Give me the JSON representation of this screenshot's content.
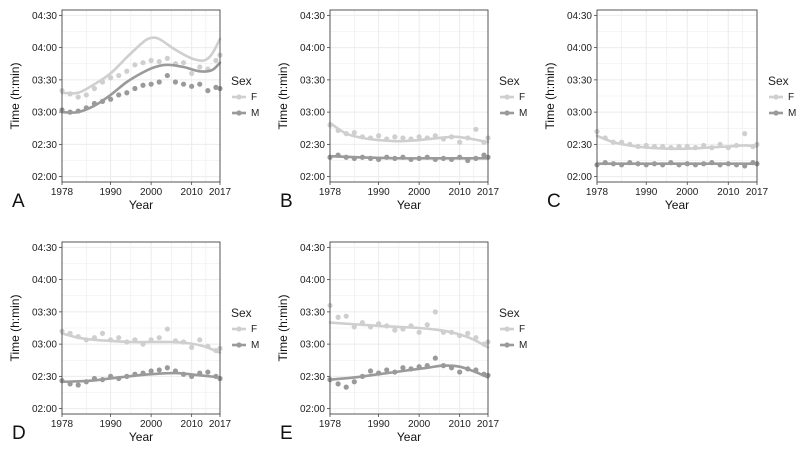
{
  "colors": {
    "F": "#cfcfcf",
    "M": "#9a9a9a",
    "grid": "#ebebeb",
    "frame": "#444444"
  },
  "chart_data": [
    {
      "panel": "A",
      "type": "scatter",
      "xlabel": "Year",
      "ylabel": "Time (h:min)",
      "xlim": [
        1978,
        2017
      ],
      "x_ticks": [
        1978,
        1990,
        2000,
        2010,
        2017
      ],
      "ylim_minutes": [
        115,
        275
      ],
      "y_ticks": [
        "02:00",
        "02:30",
        "03:00",
        "03:30",
        "04:00",
        "04:30"
      ],
      "grid": true,
      "legend": {
        "title": "Sex",
        "entries": [
          "F",
          "M"
        ],
        "position": "right"
      },
      "series": [
        {
          "name": "F",
          "x": [
            1978,
            1980,
            1982,
            1984,
            1986,
            1988,
            1990,
            1992,
            1994,
            1996,
            1998,
            2000,
            2002,
            2004,
            2006,
            2008,
            2010,
            2012,
            2014,
            2016,
            2017
          ],
          "y_minutes": [
            200,
            197,
            194,
            196,
            202,
            208,
            212,
            214,
            218,
            224,
            226,
            228,
            227,
            230,
            225,
            226,
            216,
            222,
            220,
            228,
            233
          ],
          "trend_x": [
            1978,
            1982,
            1986,
            1990,
            1994,
            1998,
            2000,
            2002,
            2006,
            2010,
            2013,
            2015,
            2017
          ],
          "trend_minutes": [
            198,
            198,
            206,
            216,
            231,
            245,
            249,
            248,
            238,
            230,
            228,
            234,
            248
          ]
        },
        {
          "name": "M",
          "x": [
            1978,
            1980,
            1982,
            1984,
            1986,
            1988,
            1990,
            1992,
            1994,
            1996,
            1998,
            2000,
            2002,
            2004,
            2006,
            2008,
            2010,
            2012,
            2014,
            2016,
            2017
          ],
          "y_minutes": [
            182,
            180,
            181,
            184,
            188,
            190,
            192,
            196,
            198,
            202,
            205,
            206,
            208,
            214,
            208,
            206,
            204,
            206,
            200,
            203,
            202
          ],
          "trend_x": [
            1978,
            1982,
            1986,
            1990,
            1994,
            1998,
            2001,
            2004,
            2008,
            2012,
            2015,
            2017
          ],
          "trend_minutes": [
            180,
            180,
            186,
            196,
            208,
            217,
            222,
            224,
            222,
            218,
            219,
            226
          ]
        }
      ]
    },
    {
      "panel": "B",
      "type": "scatter",
      "xlabel": "Year",
      "ylabel": "Time (h:min)",
      "xlim": [
        1978,
        2017
      ],
      "x_ticks": [
        1978,
        1990,
        2000,
        2010,
        2017
      ],
      "ylim_minutes": [
        115,
        275
      ],
      "y_ticks": [
        "02:00",
        "02:30",
        "03:00",
        "03:30",
        "04:00",
        "04:30"
      ],
      "grid": true,
      "legend": {
        "title": "Sex",
        "entries": [
          "F",
          "M"
        ],
        "position": "right"
      },
      "series": [
        {
          "name": "F",
          "x": [
            1978,
            1980,
            1982,
            1984,
            1986,
            1988,
            1990,
            1992,
            1994,
            1996,
            1998,
            2000,
            2002,
            2004,
            2006,
            2008,
            2010,
            2012,
            2014,
            2016,
            2017
          ],
          "y_minutes": [
            168,
            163,
            160,
            161,
            157,
            156,
            158,
            155,
            157,
            156,
            155,
            157,
            156,
            158,
            155,
            157,
            152,
            156,
            164,
            152,
            156
          ],
          "trend_x": [
            1978,
            1982,
            1986,
            1990,
            1995,
            2000,
            2005,
            2009,
            2013,
            2017
          ],
          "trend_minutes": [
            170,
            160,
            156,
            154,
            153,
            154,
            156,
            157,
            155,
            152
          ]
        },
        {
          "name": "M",
          "x": [
            1978,
            1980,
            1982,
            1984,
            1986,
            1988,
            1990,
            1992,
            1994,
            1996,
            1998,
            2000,
            2002,
            2004,
            2006,
            2008,
            2010,
            2012,
            2014,
            2016,
            2017
          ],
          "y_minutes": [
            138,
            140,
            138,
            137,
            138,
            137,
            136,
            138,
            137,
            138,
            136,
            137,
            138,
            136,
            137,
            136,
            138,
            135,
            137,
            140,
            138
          ],
          "trend_x": [
            1978,
            1985,
            1995,
            2005,
            2017
          ],
          "trend_minutes": [
            139,
            138,
            137,
            137,
            137
          ]
        }
      ]
    },
    {
      "panel": "C",
      "type": "scatter",
      "xlabel": "Year",
      "ylabel": "Time (h:min)",
      "xlim": [
        1978,
        2017
      ],
      "x_ticks": [
        1978,
        1990,
        2000,
        2010,
        2017
      ],
      "ylim_minutes": [
        115,
        275
      ],
      "y_ticks": [
        "02:00",
        "02:30",
        "03:00",
        "03:30",
        "04:00",
        "04:30"
      ],
      "grid": true,
      "legend": {
        "title": "Sex",
        "entries": [
          "F",
          "M"
        ],
        "position": "right"
      },
      "series": [
        {
          "name": "F",
          "x": [
            1978,
            1980,
            1982,
            1984,
            1986,
            1988,
            1990,
            1992,
            1994,
            1996,
            1998,
            2000,
            2002,
            2004,
            2006,
            2008,
            2010,
            2012,
            2014,
            2016,
            2017
          ],
          "y_minutes": [
            162,
            156,
            152,
            152,
            150,
            148,
            149,
            148,
            148,
            147,
            148,
            148,
            147,
            149,
            147,
            150,
            147,
            149,
            160,
            148,
            150
          ],
          "trend_x": [
            1978,
            1982,
            1986,
            1990,
            1995,
            2000,
            2005,
            2010,
            2014,
            2017
          ],
          "trend_minutes": [
            158,
            152,
            149,
            147,
            146,
            146,
            147,
            148,
            149,
            148
          ]
        },
        {
          "name": "M",
          "x": [
            1978,
            1980,
            1982,
            1984,
            1986,
            1988,
            1990,
            1992,
            1994,
            1996,
            1998,
            2000,
            2002,
            2004,
            2006,
            2008,
            2010,
            2012,
            2014,
            2016,
            2017
          ],
          "y_minutes": [
            131,
            133,
            132,
            131,
            133,
            132,
            131,
            132,
            131,
            133,
            131,
            132,
            131,
            132,
            133,
            131,
            132,
            131,
            130,
            133,
            132
          ],
          "trend_x": [
            1978,
            1990,
            2000,
            2010,
            2017
          ],
          "trend_minutes": [
            132,
            132,
            132,
            132,
            132
          ]
        }
      ]
    },
    {
      "panel": "D",
      "type": "scatter",
      "xlabel": "Year",
      "ylabel": "Time (h:min)",
      "xlim": [
        1978,
        2017
      ],
      "x_ticks": [
        1978,
        1990,
        2000,
        2010,
        2017
      ],
      "ylim_minutes": [
        115,
        275
      ],
      "y_ticks": [
        "02:00",
        "02:30",
        "03:00",
        "03:30",
        "04:00",
        "04:30"
      ],
      "grid": true,
      "legend": {
        "title": "Sex",
        "entries": [
          "F",
          "M"
        ],
        "position": "right"
      },
      "series": [
        {
          "name": "F",
          "x": [
            1978,
            1980,
            1982,
            1984,
            1986,
            1988,
            1990,
            1992,
            1994,
            1996,
            1998,
            2000,
            2002,
            2004,
            2006,
            2008,
            2010,
            2012,
            2014,
            2016,
            2017
          ],
          "y_minutes": [
            192,
            190,
            187,
            184,
            186,
            190,
            184,
            186,
            182,
            184,
            180,
            184,
            186,
            194,
            183,
            182,
            177,
            184,
            178,
            174,
            176
          ],
          "trend_x": [
            1978,
            1982,
            1986,
            1990,
            1995,
            2000,
            2005,
            2009,
            2013,
            2017
          ],
          "trend_minutes": [
            190,
            186,
            184,
            183,
            182,
            182,
            182,
            181,
            178,
            172
          ]
        },
        {
          "name": "M",
          "x": [
            1978,
            1980,
            1982,
            1984,
            1986,
            1988,
            1990,
            1992,
            1994,
            1996,
            1998,
            2000,
            2002,
            2004,
            2006,
            2008,
            2010,
            2012,
            2014,
            2016,
            2017
          ],
          "y_minutes": [
            146,
            143,
            142,
            145,
            148,
            147,
            150,
            148,
            150,
            152,
            153,
            155,
            156,
            158,
            155,
            152,
            150,
            153,
            154,
            150,
            148
          ],
          "trend_x": [
            1978,
            1985,
            1992,
            2000,
            2006,
            2012,
            2017
          ],
          "trend_minutes": [
            145,
            146,
            149,
            152,
            153,
            151,
            149
          ]
        }
      ]
    },
    {
      "panel": "E",
      "type": "scatter",
      "xlabel": "Year",
      "ylabel": "Time (h:min)",
      "xlim": [
        1978,
        2017
      ],
      "x_ticks": [
        1978,
        1990,
        2000,
        2010,
        2017
      ],
      "ylim_minutes": [
        115,
        275
      ],
      "y_ticks": [
        "02:00",
        "02:30",
        "03:00",
        "03:30",
        "04:00",
        "04:30"
      ],
      "grid": true,
      "legend": {
        "title": "Sex",
        "entries": [
          "F",
          "M"
        ],
        "position": "right"
      },
      "series": [
        {
          "name": "F",
          "x": [
            1978,
            1980,
            1982,
            1984,
            1986,
            1988,
            1990,
            1992,
            1994,
            1996,
            1998,
            2000,
            2002,
            2004,
            2006,
            2008,
            2010,
            2012,
            2014,
            2016,
            2017
          ],
          "y_minutes": [
            216,
            205,
            206,
            196,
            200,
            196,
            199,
            197,
            193,
            194,
            197,
            191,
            198,
            210,
            191,
            191,
            188,
            190,
            186,
            180,
            182
          ],
          "trend_x": [
            1978,
            1982,
            1986,
            1990,
            1995,
            2000,
            2005,
            2009,
            2013,
            2017
          ],
          "trend_minutes": [
            200,
            199,
            198,
            197,
            196,
            195,
            193,
            190,
            185,
            177
          ]
        },
        {
          "name": "M",
          "x": [
            1978,
            1980,
            1982,
            1984,
            1986,
            1988,
            1990,
            1992,
            1994,
            1996,
            1998,
            2000,
            2002,
            2004,
            2006,
            2008,
            2010,
            2012,
            2014,
            2016,
            2017
          ],
          "y_minutes": [
            147,
            143,
            140,
            145,
            150,
            155,
            153,
            156,
            154,
            158,
            157,
            159,
            160,
            167,
            160,
            158,
            154,
            157,
            156,
            152,
            151
          ],
          "trend_x": [
            1978,
            1984,
            1990,
            1996,
            2002,
            2006,
            2010,
            2014,
            2017
          ],
          "trend_minutes": [
            147,
            149,
            152,
            155,
            158,
            160,
            159,
            154,
            149
          ]
        }
      ]
    }
  ]
}
